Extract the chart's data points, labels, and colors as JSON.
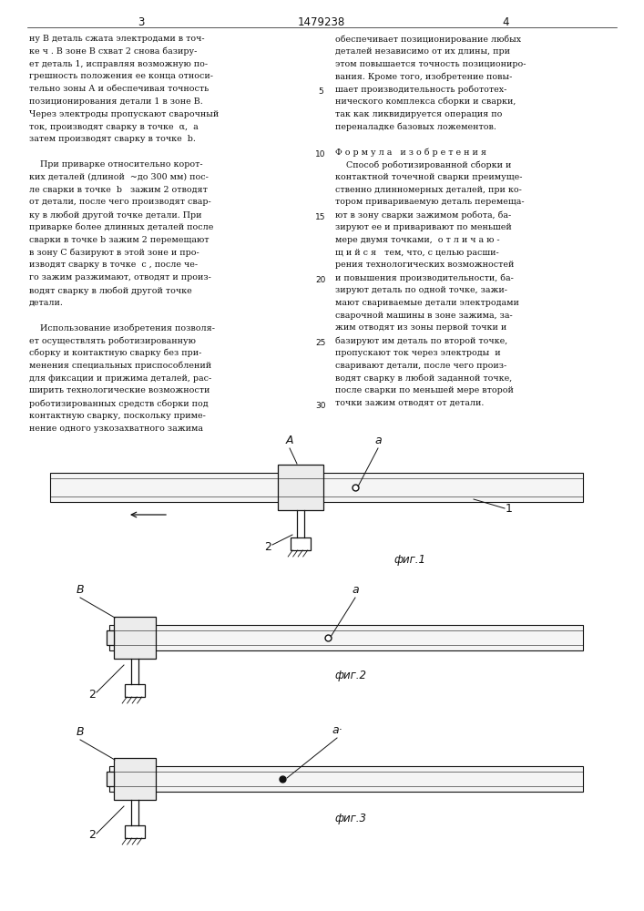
{
  "page_number_center": "1479238",
  "page_number_left": "3",
  "page_number_right": "4",
  "bg_color": "#ffffff",
  "text_color": "#111111",
  "left_column_text": [
    "ну В деталь сжата электродами в точ-",
    "ке ч . В зоне В схват 2 снова базиру-",
    "ет деталь 1, исправляя возможную по-",
    "грешность положения ее конца относи-",
    "тельно зоны А и обеспечивая точность",
    "позиционирования детали 1 в зоне В.",
    "Через электроды пропускают сварочный",
    "ток, производят сварку в точке  α,  а",
    "затем производят сварку в точке  b.",
    "",
    "    При приварке относительно корот-",
    "ких деталей (длиной  ~до 300 мм) пос-",
    "ле сварки в точке  b   зажим 2 отводят",
    "от детали, после чего производят свар-",
    "ку в любой другой точке детали. При",
    "приварке более длинных деталей после",
    "сварки в точке b зажим 2 перемещают",
    "в зону С базируют в этой зоне и про-",
    "изводят сварку в точке  с , после че-",
    "го зажим разжимают, отводят и произ-",
    "водят сварку в любой другой точке",
    "детали.",
    "",
    "    Использование изобретения позволя-",
    "ет осуществлять роботизированную",
    "сборку и контактную сварку без при-",
    "менения специальных приспособлений",
    "для фиксации и прижима деталей, рас-",
    "ширить технологические возможности",
    "роботизированных средств сборки под",
    "контактную сварку, поскольку приме-",
    "нение одного узкозахватного зажима"
  ],
  "right_column_text": [
    "обеспечивает позиционирование любых",
    "деталей независимо от их длины, при",
    "этом повышается точность позициониро-",
    "вания. Кроме того, изобретение повы-",
    "шает производительность робототех-",
    "нического комплекса сборки и сварки,",
    "так как ликвидируется операция по",
    "переналадке базовых ложементов.",
    "",
    "Ф о р м у л а   и з о б р е т е н и я",
    "    Способ роботизированной сборки и",
    "контактной точечной сварки преимуще-",
    "ственно длинномерных деталей, при ко-",
    "тором привариваемую деталь перемеща-",
    "ют в зону сварки зажимом робота, ба-",
    "зируют ее и приваривают по меньшей",
    "мере двумя точками,  о т л и ч а ю -",
    "щ и й с я   тем, что, с целью расши-",
    "рения технологических возможностей",
    "и повышения производительности, ба-",
    "зируют деталь по одной точке, зажи-",
    "мают свариваемые детали электродами",
    "сварочной машины в зоне зажима, за-",
    "жим отводят из зоны первой точки и",
    "базируют им деталь по второй точке,",
    "пропускают ток через электроды  и",
    "сваривают детали, после чего произ-",
    "водят сварку в любой заданной точке,",
    "после сварки по меньшей мере второй",
    "точки зажим отводят от детали."
  ],
  "line_number_rows": [
    4,
    9,
    14,
    19,
    24,
    29
  ],
  "line_number_vals": [
    5,
    10,
    15,
    20,
    25,
    30
  ]
}
